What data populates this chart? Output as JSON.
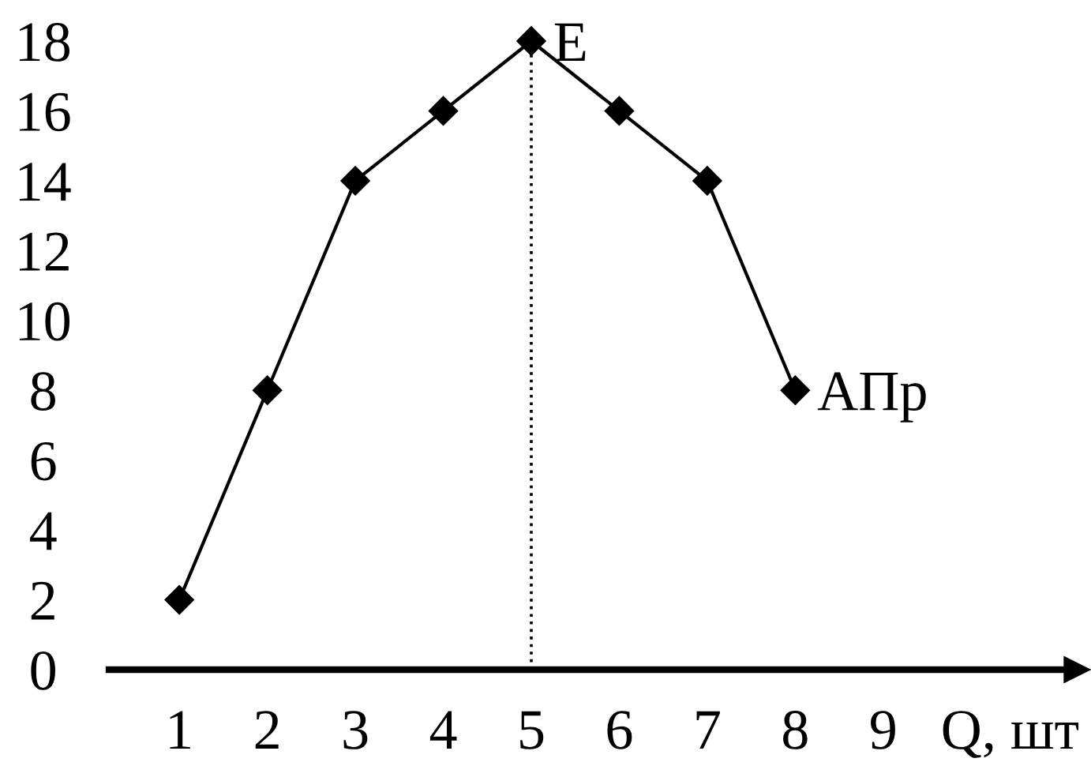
{
  "chart_data": {
    "type": "line",
    "xlabel": "Q, шт",
    "x": [
      1,
      2,
      3,
      4,
      5,
      6,
      7,
      8
    ],
    "series": [
      {
        "color": "#000000",
        "values": [
          2,
          8,
          14,
          16,
          18,
          16,
          14,
          8
        ]
      }
    ],
    "xlim": [
      0.2,
      11.2
    ],
    "ylim": [
      0,
      18
    ],
    "xticks": [
      1,
      2,
      3,
      4,
      5,
      6,
      7,
      8,
      9
    ],
    "yticks": [
      0,
      2,
      4,
      6,
      8,
      10,
      12,
      14,
      16,
      18
    ],
    "marker": "diamond",
    "line_style": "solid",
    "ref_lines": [
      {
        "axis": "x",
        "value": 5,
        "line_style": "dotted",
        "color": "#000000"
      }
    ],
    "annotations": [
      {
        "text": "E",
        "x": 5,
        "y": 18
      },
      {
        "text": "АПр",
        "x": 8,
        "y": 8
      }
    ]
  }
}
